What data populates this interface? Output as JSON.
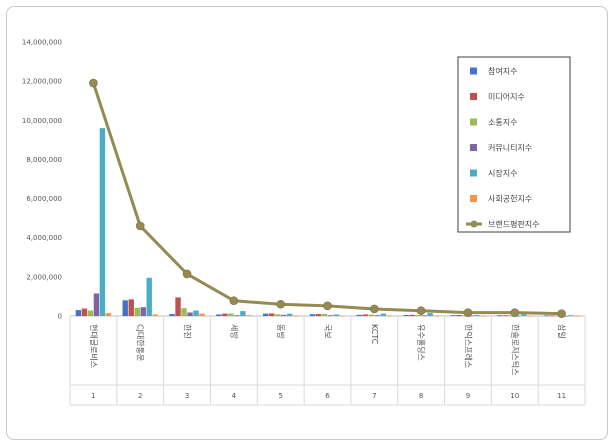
{
  "chart_data": {
    "type": "bar",
    "title": "",
    "xlabel": "",
    "ylabel": "",
    "ylim": [
      0,
      14000000
    ],
    "yticks": [
      "0",
      "2,000,000",
      "4,000,000",
      "6,000,000",
      "8,000,000",
      "10,000,000",
      "12,000,000",
      "14,000,000"
    ],
    "ytick_values": [
      0,
      2000000,
      4000000,
      6000000,
      8000000,
      10000000,
      12000000,
      14000000
    ],
    "categories": [
      "현대글로비스",
      "CJ대한통운",
      "한진",
      "세방",
      "동방",
      "국보",
      "KCTC",
      "유수홀딩스",
      "한익스프레스",
      "한솔로지스틱스",
      "삼일"
    ],
    "ranks": [
      "1",
      "2",
      "3",
      "4",
      "5",
      "6",
      "7",
      "8",
      "9",
      "10",
      "11"
    ],
    "legend_position": "right",
    "grid": false,
    "series": [
      {
        "name": "참여지수",
        "kind": "bar",
        "color": "#4472c4",
        "values": [
          300000,
          800000,
          100000,
          80000,
          120000,
          90000,
          60000,
          50000,
          40000,
          40000,
          30000
        ]
      },
      {
        "name": "미디어지수",
        "kind": "bar",
        "color": "#c0504d",
        "values": [
          380000,
          850000,
          950000,
          120000,
          130000,
          100000,
          80000,
          60000,
          50000,
          40000,
          30000
        ]
      },
      {
        "name": "소통지수",
        "kind": "bar",
        "color": "#9bbb59",
        "values": [
          280000,
          420000,
          400000,
          130000,
          90000,
          110000,
          70000,
          50000,
          40000,
          40000,
          30000
        ]
      },
      {
        "name": "커뮤니티지수",
        "kind": "bar",
        "color": "#8064a2",
        "values": [
          1150000,
          450000,
          180000,
          40000,
          60000,
          40000,
          40000,
          30000,
          20000,
          20000,
          10000
        ]
      },
      {
        "name": "시장지수",
        "kind": "bar",
        "color": "#4bacc6",
        "values": [
          9600000,
          1950000,
          280000,
          250000,
          120000,
          80000,
          120000,
          150000,
          50000,
          80000,
          40000
        ]
      },
      {
        "name": "사회공헌지수",
        "kind": "bar",
        "color": "#f79646",
        "values": [
          150000,
          80000,
          120000,
          40000,
          30000,
          20000,
          30000,
          20000,
          10000,
          10000,
          10000
        ]
      },
      {
        "name": "브랜드평판지수",
        "kind": "line",
        "color": "#948a54",
        "values": [
          11900000,
          4600000,
          2150000,
          780000,
          600000,
          520000,
          360000,
          270000,
          170000,
          170000,
          120000
        ]
      }
    ]
  }
}
